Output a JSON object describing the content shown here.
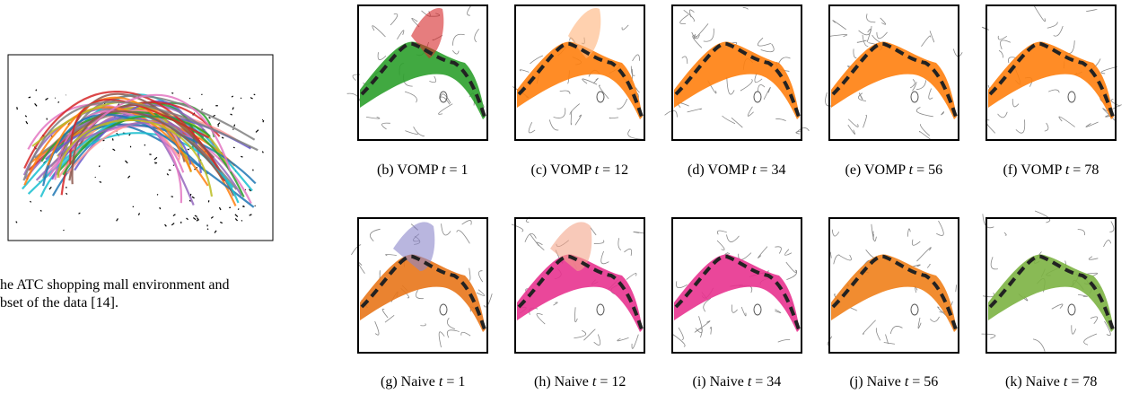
{
  "figure_a": {
    "caption_lines": [
      "he ATC shopping mall environment and",
      "bset of the data [14]."
    ]
  },
  "top_row": [
    {
      "label": "(b) VOMP",
      "var": "t",
      "eq": "= 1"
    },
    {
      "label": "(c) VOMP",
      "var": "t",
      "eq": "= 12"
    },
    {
      "label": "(d) VOMP",
      "var": "t",
      "eq": "= 34"
    },
    {
      "label": "(e) VOMP",
      "var": "t",
      "eq": "= 56"
    },
    {
      "label": "(f) VOMP",
      "var": "t",
      "eq": "= 78"
    }
  ],
  "bottom_row": [
    {
      "label": "(g) Naive",
      "var": "t",
      "eq": "= 1"
    },
    {
      "label": "(h) Naive",
      "var": "t",
      "eq": "= 12"
    },
    {
      "label": "(i) Naive",
      "var": "t",
      "eq": "= 34"
    },
    {
      "label": "(j) Naive",
      "var": "t",
      "eq": "= 56"
    },
    {
      "label": "(k) Naive",
      "var": "t",
      "eq": "= 78"
    }
  ]
}
